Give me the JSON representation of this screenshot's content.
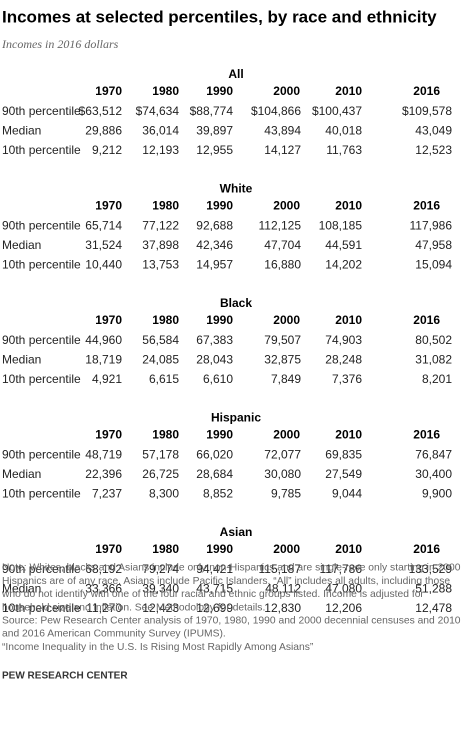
{
  "header": {
    "title": "Incomes at selected percentiles, by race and ethnicity",
    "subtitle": "Incomes in 2016 dollars"
  },
  "sections": [
    {
      "heading": "All",
      "years": [
        "1970",
        "1980",
        "1990",
        "2000",
        "2010",
        "2016"
      ],
      "rows": [
        {
          "label": "90th percentile",
          "values": [
            "$63,512",
            "$74,634",
            "$88,774",
            "$104,866",
            "$100,437",
            "$109,578"
          ]
        },
        {
          "label": "Median",
          "values": [
            "29,886",
            "36,014",
            "39,897",
            "43,894",
            "40,018",
            "43,049"
          ]
        },
        {
          "label": "10th percentile",
          "values": [
            "9,212",
            "12,193",
            "12,955",
            "14,127",
            "11,763",
            "12,523"
          ]
        }
      ]
    },
    {
      "heading": "White",
      "years": [
        "1970",
        "1980",
        "1990",
        "2000",
        "2010",
        "2016"
      ],
      "rows": [
        {
          "label": "90th percentile",
          "values": [
            "65,714",
            "77,122",
            "92,688",
            "112,125",
            "108,185",
            "117,986"
          ]
        },
        {
          "label": "Median",
          "values": [
            "31,524",
            "37,898",
            "42,346",
            "47,704",
            "44,591",
            "47,958"
          ]
        },
        {
          "label": "10th percentile",
          "values": [
            "10,440",
            "13,753",
            "14,957",
            "16,880",
            "14,202",
            "15,094"
          ]
        }
      ]
    },
    {
      "heading": "Black",
      "years": [
        "1970",
        "1980",
        "1990",
        "2000",
        "2010",
        "2016"
      ],
      "rows": [
        {
          "label": "90th percentile",
          "values": [
            "44,960",
            "56,584",
            "67,383",
            "79,507",
            "74,903",
            "80,502"
          ]
        },
        {
          "label": "Median",
          "values": [
            "18,719",
            "24,085",
            "28,043",
            "32,875",
            "28,248",
            "31,082"
          ]
        },
        {
          "label": "10th percentile",
          "values": [
            "4,921",
            "6,615",
            "6,610",
            "7,849",
            "7,376",
            "8,201"
          ]
        }
      ]
    },
    {
      "heading": "Hispanic",
      "years": [
        "1970",
        "1980",
        "1990",
        "2000",
        "2010",
        "2016"
      ],
      "rows": [
        {
          "label": "90th percentile",
          "values": [
            "48,719",
            "57,178",
            "66,020",
            "72,077",
            "69,835",
            "76,847"
          ]
        },
        {
          "label": "Median",
          "values": [
            "22,396",
            "26,725",
            "28,684",
            "30,080",
            "27,549",
            "30,400"
          ]
        },
        {
          "label": "10th percentile",
          "values": [
            "7,237",
            "8,300",
            "8,852",
            "9,785",
            "9,044",
            "9,900"
          ]
        }
      ]
    },
    {
      "heading": "Asian",
      "years": [
        "1970",
        "1980",
        "1990",
        "2000",
        "2010",
        "2016"
      ],
      "rows": [
        {
          "label": "90th percentile",
          "values": [
            "68,192",
            "79,274",
            "94,421",
            "115,187",
            "117,786",
            "133,529"
          ]
        },
        {
          "label": "Median",
          "values": [
            "33,366",
            "39,340",
            "43,715",
            "48,112",
            "47,080",
            "51,288"
          ]
        },
        {
          "label": "10th percentile",
          "values": [
            "11,270",
            "12,423",
            "12,699",
            "12,830",
            "12,206",
            "12,478"
          ]
        }
      ]
    }
  ],
  "footer": {
    "notes": [
      "Note: Whites, blacks and Asians include only non-Hispanics and are single-race only starting in 2000.",
      "Hispanics are of any race. Asians include Pacific Islanders. “All” includes all adults, including those",
      "who do not identify with one of the four racial and ethnic groups listed. Income is adjusted for",
      "household size and inflation. See Methodology for details.",
      "Source: Pew Research Center analysis of 1970, 1980, 1990 and 2000 decennial censuses and 2010",
      "and 2016 American Community Survey (IPUMS).",
      "“Income Inequality in the U.S. Is Rising Most Rapidly Among Asians”"
    ],
    "brand": "PEW RESEARCH CENTER"
  }
}
